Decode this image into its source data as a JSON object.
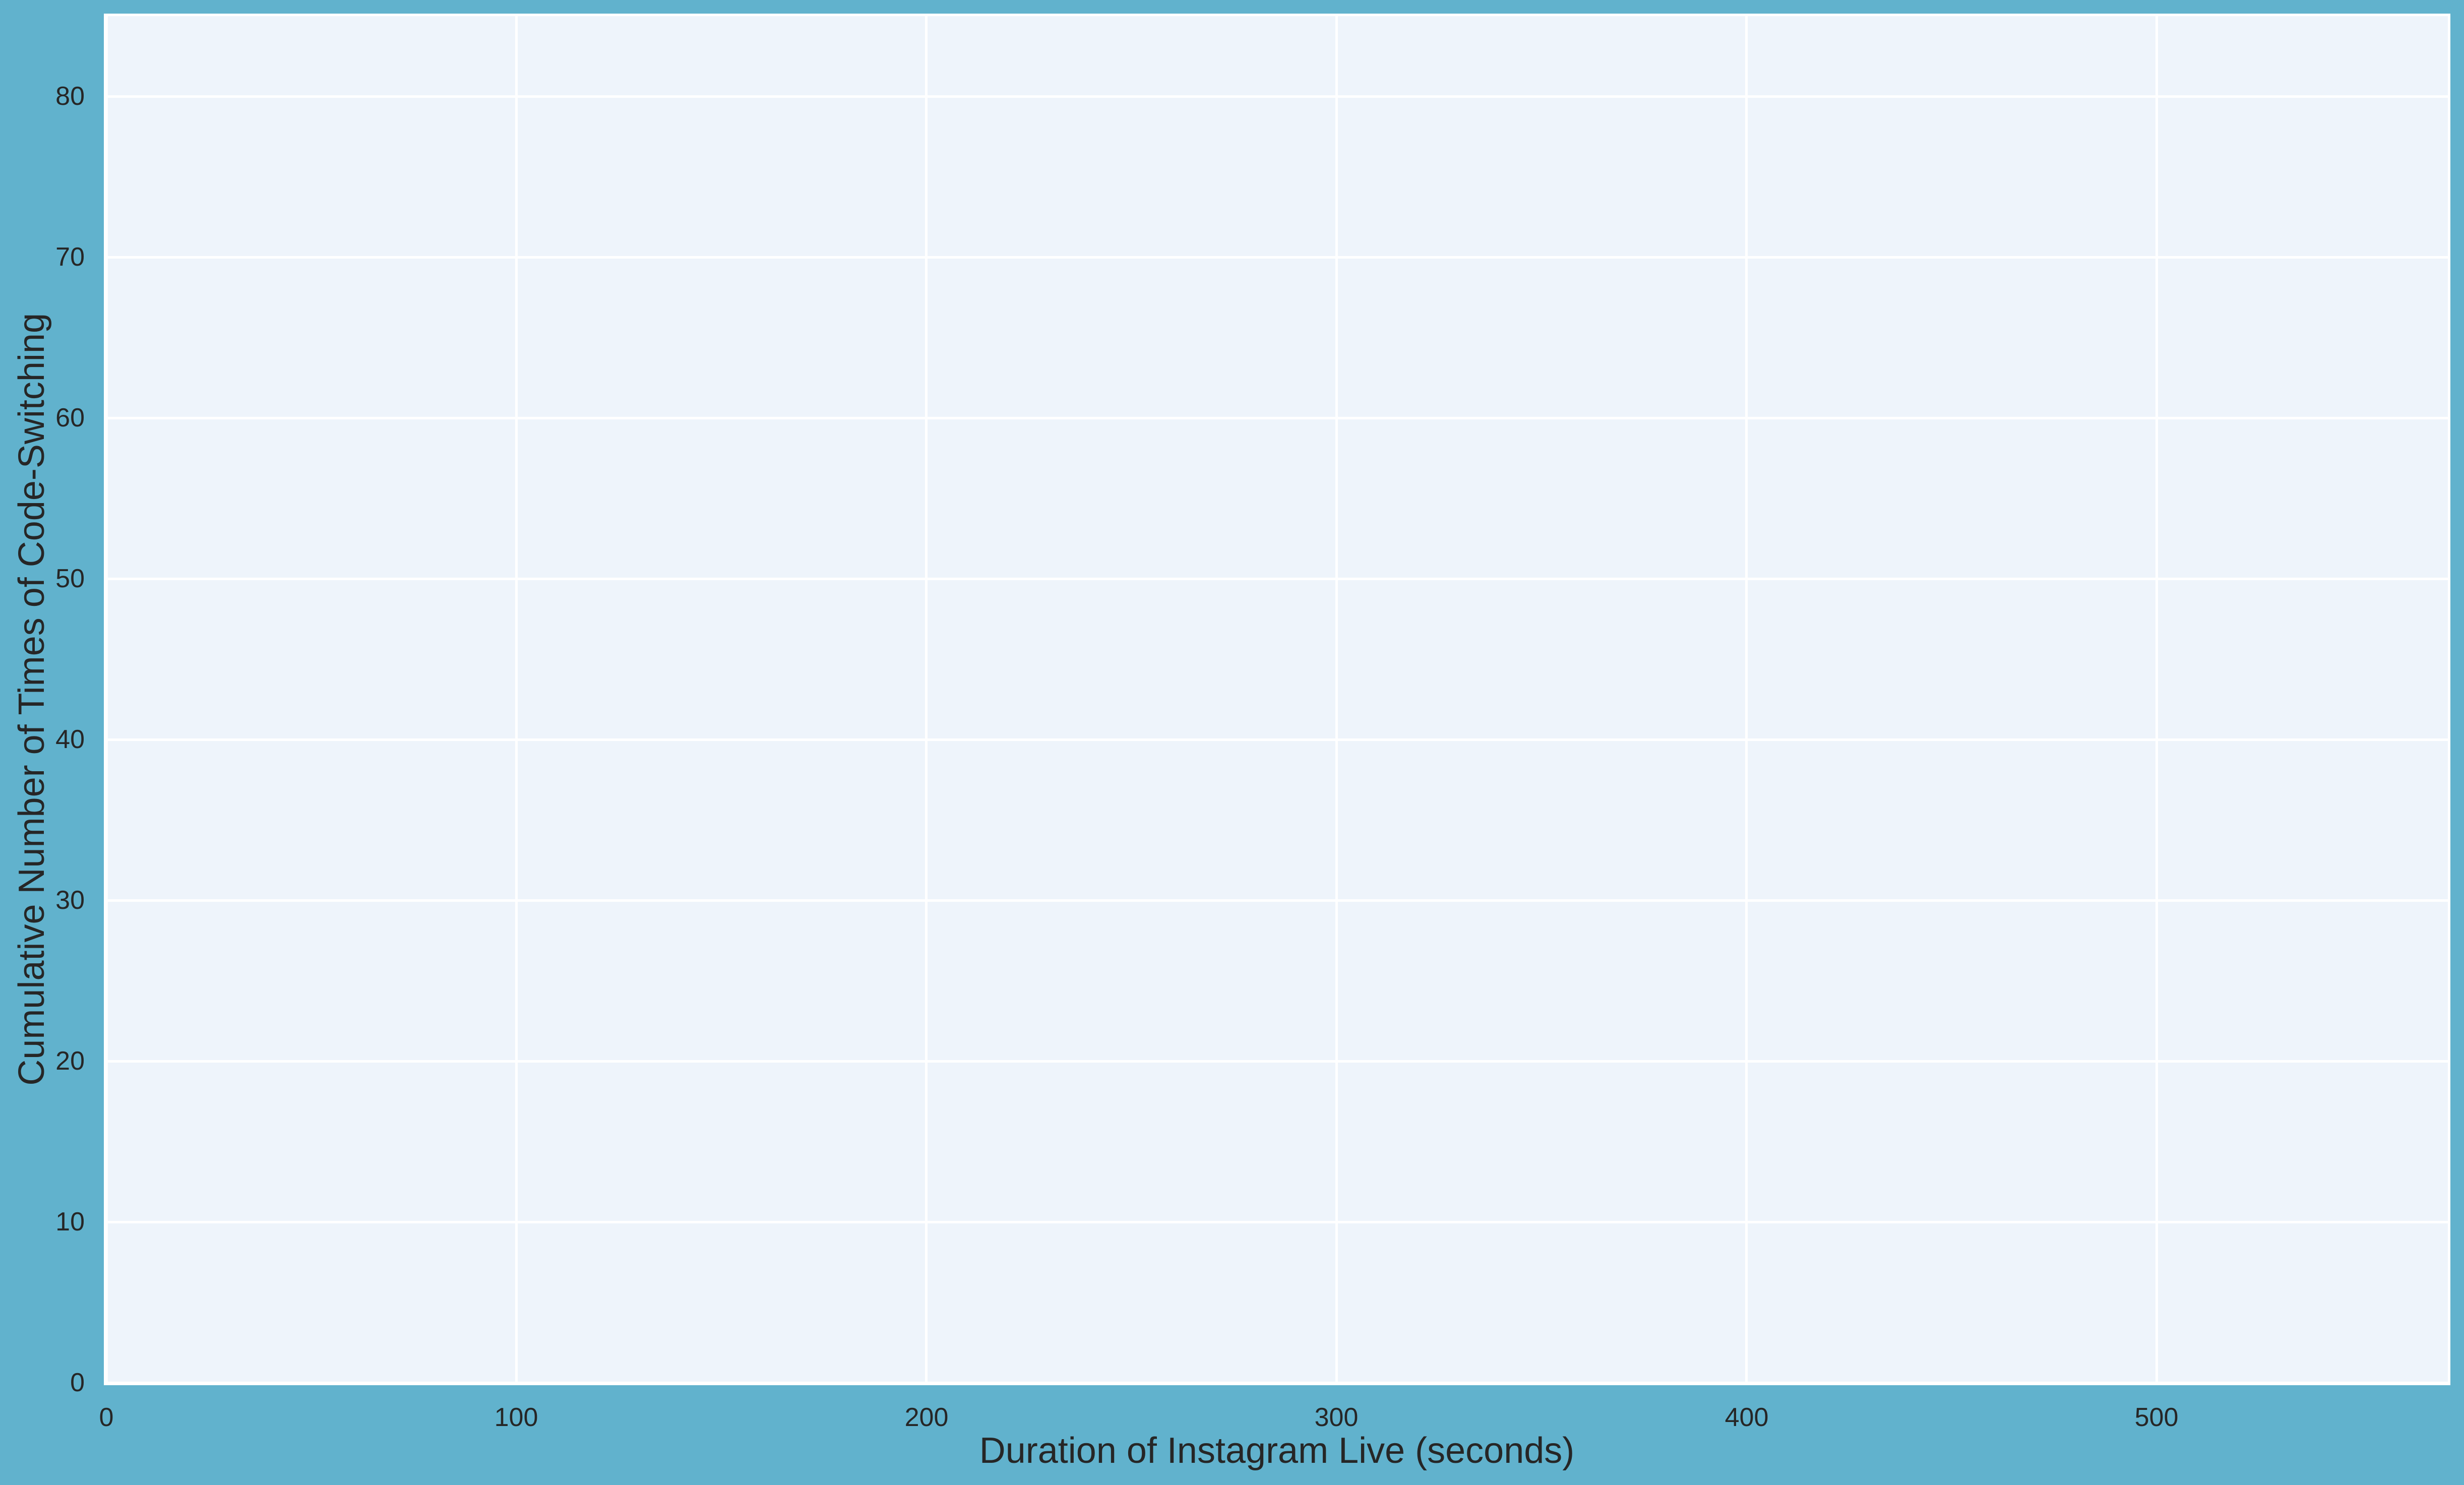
{
  "colors": {
    "figure_background": "#61b2cd",
    "axes_background": "#eef4fb",
    "grid_color": "#ffffff",
    "text_color": "#262626"
  },
  "chart_data": {
    "type": "line",
    "title": "",
    "xlabel": "Duration of Instagram Live (seconds)",
    "ylabel": "Cumulative Number of Times of Code-Switching",
    "x_axis": {
      "min": 0,
      "max": 571,
      "ticks": [
        0,
        100,
        200,
        300,
        400,
        500
      ]
    },
    "y_axis": {
      "min": 0,
      "max": 85,
      "ticks": [
        0,
        10,
        20,
        30,
        40,
        50,
        60,
        70,
        80
      ]
    },
    "grid": true,
    "legend_visible": false,
    "series": []
  }
}
